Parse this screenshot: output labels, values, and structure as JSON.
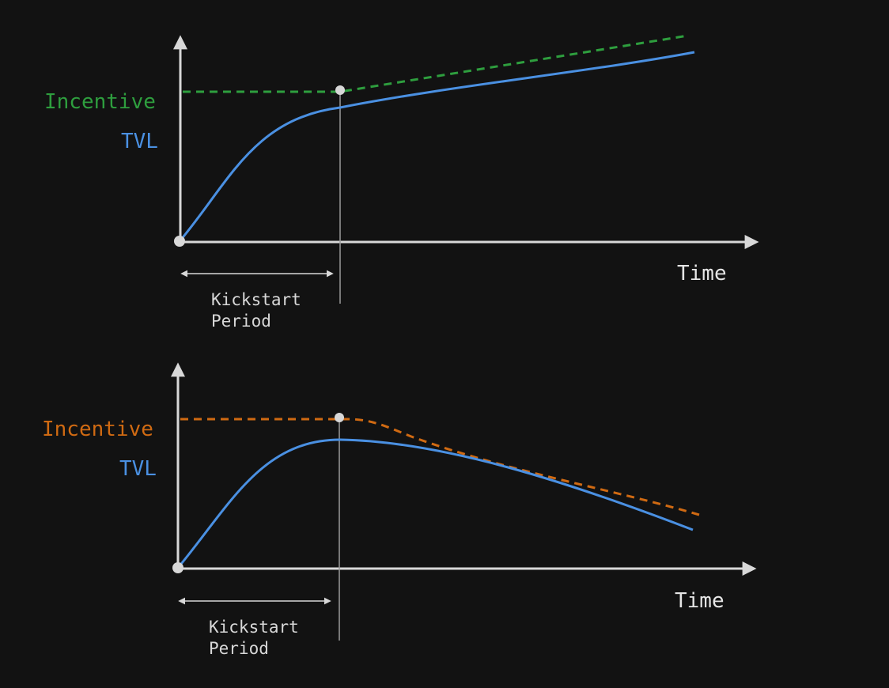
{
  "colors": {
    "background": "#121212",
    "axis": "#d8d8d8",
    "guide": "#9a9a9a",
    "tvl": "#4a90e2",
    "incentive_top": "#2e9e3e",
    "incentive_bottom": "#d06a12",
    "marker": "#d8d8d8",
    "period_text": "#d8d8d8"
  },
  "diagrams": [
    {
      "incentive_label": "Incentive",
      "tvl_label": "TVL",
      "time_label": "Time",
      "period_line1": "Kickstart",
      "period_line2": "Period"
    },
    {
      "incentive_label": "Incentive",
      "tvl_label": "TVL",
      "time_label": "Time",
      "period_line1": "Kickstart",
      "period_line2": "Period"
    }
  ]
}
